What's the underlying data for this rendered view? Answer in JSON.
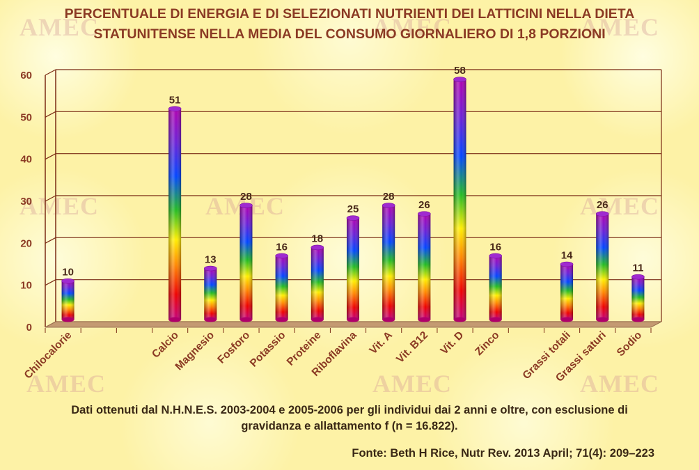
{
  "title": {
    "line1": "PERCENTUALE DI ENERGIA E DI SELEZIONATI NUTRIENTI DEI LATTICINI NELLA DIETA",
    "line2": "STATUNITENSE NELLA MEDIA DEL CONSUMO GIORNALIERO DI 1,8 PORZIONI"
  },
  "watermark": "AMEC",
  "chart_data": {
    "type": "bar",
    "categories": [
      "Chilocalorie",
      "",
      "",
      "Calcio",
      "Magnesio",
      "Fosforo",
      "Potassio",
      "Proteine",
      "Riboflavina",
      "Vit. A",
      "Vit. B12",
      "Vit. D",
      "Zinco",
      "",
      "Grassi totali",
      "Grassi saturi",
      "Sodio"
    ],
    "values": [
      10,
      null,
      null,
      51,
      13,
      28,
      16,
      18,
      25,
      28,
      26,
      58,
      16,
      null,
      14,
      26,
      11
    ],
    "y_ticks": [
      "0",
      "10",
      "20",
      "30",
      "40",
      "50",
      "60"
    ],
    "ylim": [
      0,
      60
    ],
    "grid": true
  },
  "footnote": {
    "line1": "Dati ottenuti dal N.H.N.E.S. 2003-2004 e 2005-2006 per gli individui dai 2 anni e oltre, con esclusione di",
    "line2": "gravidanza e allattamento f (n = 16.822)."
  },
  "source": "Fonte: Beth H Rice, Nutr Rev. 2013 April; 71(4): 209–223",
  "colors": {
    "title": "#8b3a24",
    "axis_text": "#8b3a24",
    "gridline": "#7a2a14",
    "floor": "#c49a72",
    "rainbow": [
      "#ee0000",
      "#ff8800",
      "#ffee00",
      "#22bb22",
      "#0044ff",
      "#6a1fd6",
      "#b000b0"
    ]
  }
}
